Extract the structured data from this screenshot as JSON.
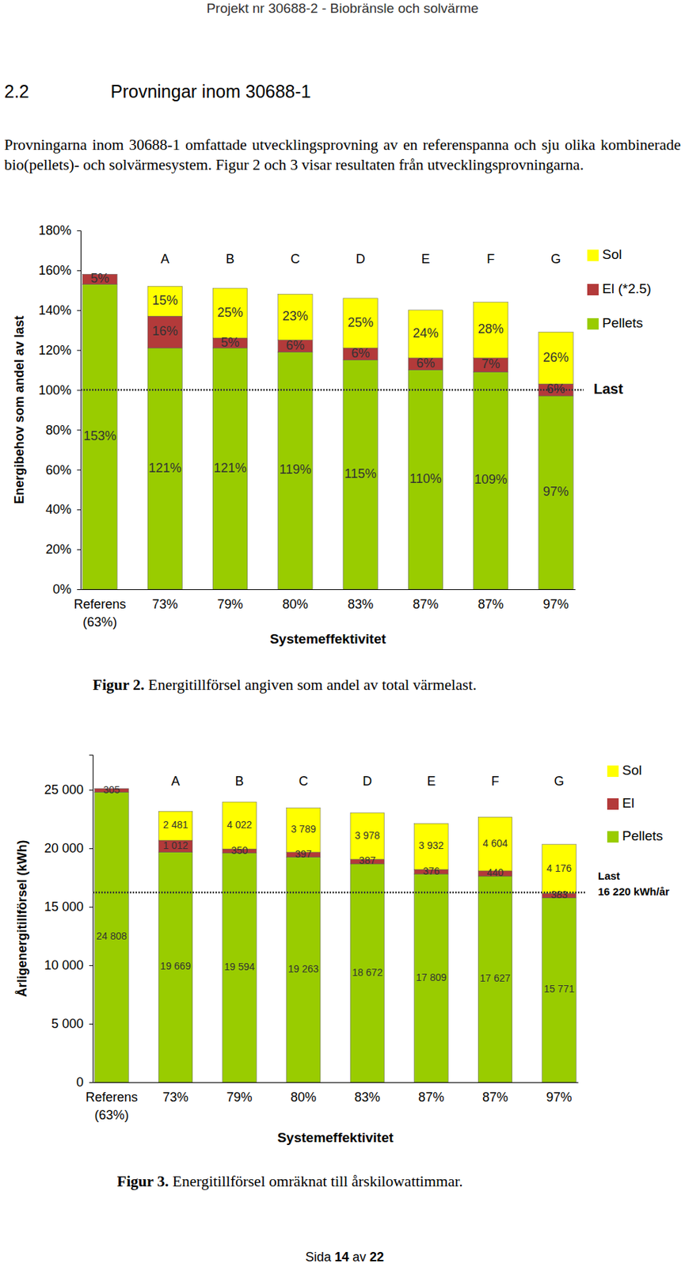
{
  "page": {
    "header": "Projekt nr 30688-2 - Biobränsle och solvärme",
    "section_number": "2.2",
    "section_title": "Provningar inom 30688-1",
    "paragraph": "Provningarna inom 30688-1 omfattade utvecklingsprovning av en referenspanna och sju olika kombinerade bio(pellets)- och solvärmesystem. Figur 2 och 3 visar resultaten från utvecklingsprovningarna.",
    "footer": "Sida 14 av 22"
  },
  "chart_data": [
    {
      "type": "bar",
      "stacked": true,
      "data_labels": true,
      "grid": false,
      "legend": "upper right",
      "caption": "Figur 2. Energitillförsel angiven som andel av total värmelast.",
      "x_label": "Systemeffektivitet",
      "y_label": "Energibehov som andel av last",
      "categories": [
        "Referens (63%)",
        "73%",
        "79%",
        "80%",
        "83%",
        "87%",
        "87%",
        "97%"
      ],
      "group_labels": [
        null,
        "A",
        "B",
        "C",
        "D",
        "E",
        "F",
        "G"
      ],
      "ylim": [
        0,
        180
      ],
      "yticks": [
        {
          "value": 0,
          "label": "0%"
        },
        {
          "value": 20,
          "label": "20%"
        },
        {
          "value": 40,
          "label": "40%"
        },
        {
          "value": 60,
          "label": "60%"
        },
        {
          "value": 80,
          "label": "80%"
        },
        {
          "value": 100,
          "label": "100%"
        },
        {
          "value": 120,
          "label": "120%"
        },
        {
          "value": 140,
          "label": "140%"
        },
        {
          "value": 160,
          "label": "160%"
        },
        {
          "value": 180,
          "label": "180%"
        }
      ],
      "series": [
        {
          "name": "Pellets",
          "color": "#99cc00",
          "values": [
            153,
            121,
            121,
            119,
            115,
            110,
            109,
            97
          ],
          "value_labels": [
            "153%",
            "121%",
            "121%",
            "119%",
            "115%",
            "110%",
            "109%",
            "97%"
          ]
        },
        {
          "name": "El (*2.5)",
          "color": "#b33a3a",
          "values": [
            5,
            16,
            5,
            6,
            6,
            6,
            7,
            6
          ],
          "value_labels": [
            "5%",
            "16%",
            "5%",
            "6%",
            "6%",
            "6%",
            "7%",
            "6%"
          ]
        },
        {
          "name": "Sol",
          "color": "#ffff00",
          "values": [
            null,
            15,
            25,
            23,
            25,
            24,
            28,
            26
          ],
          "value_labels": [
            null,
            "15%",
            "25%",
            "23%",
            "25%",
            "24%",
            "28%",
            "26%"
          ]
        }
      ],
      "reference_line": {
        "value": 100,
        "label": [
          "Last"
        ]
      }
    },
    {
      "type": "bar",
      "stacked": true,
      "data_labels": true,
      "grid": false,
      "legend": "upper right",
      "caption": "Figur 3. Energitillförsel omräknat till årskilowattimmar.",
      "x_label": "Systemeffektivitet",
      "y_label": "Årligenergitillförsel (kWh)",
      "categories": [
        "Referens (63%)",
        "73%",
        "79%",
        "80%",
        "83%",
        "87%",
        "87%",
        "97%"
      ],
      "group_labels": [
        null,
        "A",
        "B",
        "C",
        "D",
        "E",
        "F",
        "G"
      ],
      "ylim": [
        0,
        28000
      ],
      "yticks": [
        0,
        {
          "value": 5000,
          "label": "5 000"
        },
        {
          "value": 10000,
          "label": "10 000"
        },
        {
          "value": 15000,
          "label": "15 000"
        },
        {
          "value": 20000,
          "label": "20 000"
        },
        {
          "value": 25000,
          "label": "25 000"
        }
      ],
      "series": [
        {
          "name": "Pellets",
          "color": "#99cc00",
          "values": [
            24808,
            19669,
            19594,
            19263,
            18672,
            17809,
            17627,
            15771
          ],
          "value_labels": [
            "24 808",
            "19 669",
            "19 594",
            "19 263",
            "18 672",
            "17 809",
            "17 627",
            "15 771"
          ]
        },
        {
          "name": "El",
          "color": "#b33a3a",
          "values": [
            305,
            1012,
            350,
            397,
            387,
            376,
            440,
            383
          ],
          "value_labels": [
            "305",
            "1 012",
            "350",
            "397",
            "387",
            "376",
            "440",
            "383"
          ]
        },
        {
          "name": "Sol",
          "color": "#ffff00",
          "values": [
            null,
            2481,
            4022,
            3789,
            3978,
            3932,
            4604,
            4176
          ],
          "value_labels": [
            null,
            "2 481",
            "4 022",
            "3 789",
            "3 978",
            "3 932",
            "4 604",
            "4 176"
          ]
        }
      ],
      "reference_line": {
        "value": 16220,
        "label": [
          "Last",
          "16 220 kWh/år"
        ]
      }
    }
  ]
}
